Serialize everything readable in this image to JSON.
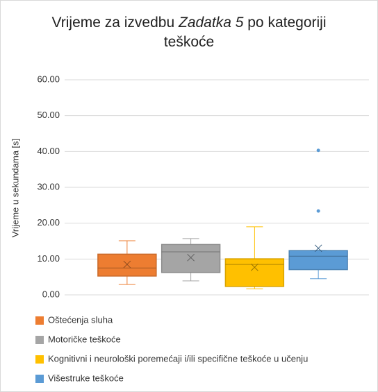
{
  "chart_data": {
    "type": "box",
    "title_parts": [
      "Vrijeme za izvedbu",
      "Zadatka 5",
      "po kategoriji teškoće"
    ],
    "y_label": "Vrijeme u sekundama [s]",
    "ylim": [
      0,
      60
    ],
    "yticks": [
      {
        "value": 0,
        "label": "0.00"
      },
      {
        "value": 10,
        "label": "10.00"
      },
      {
        "value": 20,
        "label": "20.00"
      },
      {
        "value": 30,
        "label": "30.00"
      },
      {
        "value": 40,
        "label": "40.00"
      },
      {
        "value": 50,
        "label": "50.00"
      },
      {
        "value": 60,
        "label": "60.00"
      }
    ],
    "grid": true,
    "legend": "bottom-left",
    "series": [
      {
        "name": "Oštećenja sluha",
        "color": "#ed7d31",
        "min": 2.9,
        "q1": 5.2,
        "median": 7.5,
        "q3": 11.4,
        "max": 15.1,
        "mean": 8.5,
        "outliers": []
      },
      {
        "name": "Motoričke teškoće",
        "color": "#a5a5a5",
        "min": 3.9,
        "q1": 6.2,
        "median": 12.0,
        "q3": 14.1,
        "max": 15.7,
        "mean": 10.4,
        "outliers": []
      },
      {
        "name": "Kognitivni i neurološki poremećaji i/ili specifične teškoće u učenju",
        "color": "#ffc000",
        "min": 1.7,
        "q1": 2.3,
        "median": 8.5,
        "q3": 10.1,
        "max": 19.0,
        "mean": 7.7,
        "outliers": []
      },
      {
        "name": "Višestruke teškoće",
        "color": "#5b9bd5",
        "min": 4.5,
        "q1": 7.0,
        "median": 10.8,
        "q3": 12.4,
        "max": 12.4,
        "mean": 13.0,
        "outliers": [
          40.3,
          23.4
        ]
      }
    ]
  }
}
